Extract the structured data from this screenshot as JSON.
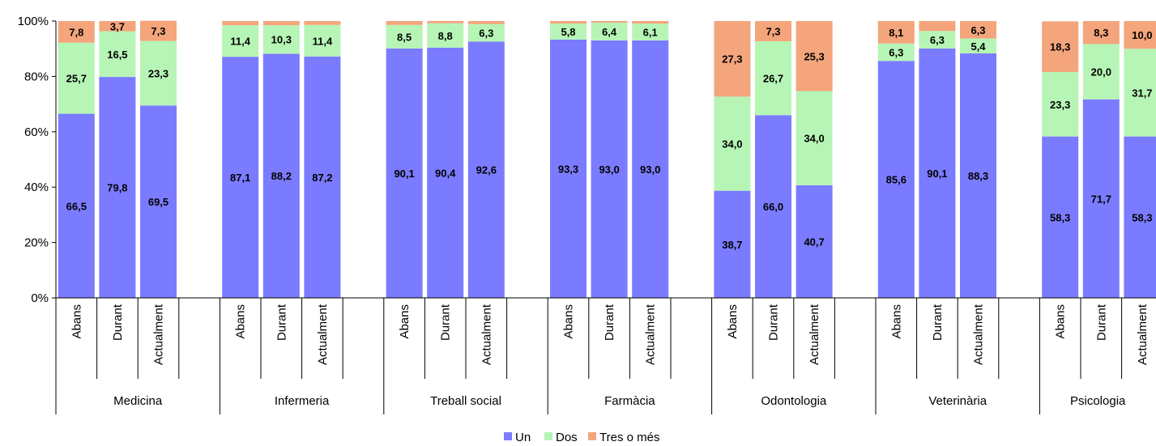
{
  "chart_data": {
    "type": "bar",
    "stacked": true,
    "percent": true,
    "title": "",
    "xlabel": "",
    "ylabel": "",
    "ylim": [
      0,
      100
    ],
    "y_ticks": [
      "0%",
      "20%",
      "40%",
      "60%",
      "80%",
      "100%"
    ],
    "grid": false,
    "legend_position": "bottom",
    "groups": [
      "Medicina",
      "Infermeria",
      "Treball social",
      "Farmàcia",
      "Odontologia",
      "Veterinària",
      "Psicologia"
    ],
    "periods": [
      "Abans",
      "Durant",
      "Actualment"
    ],
    "series": [
      {
        "name": "Un",
        "color": "#7b7bff",
        "values": [
          66.5,
          79.8,
          69.5,
          87.1,
          88.2,
          87.2,
          90.1,
          90.4,
          92.6,
          93.3,
          93.0,
          93.0,
          38.7,
          66.0,
          40.7,
          85.6,
          90.1,
          88.3,
          58.3,
          71.7,
          58.3
        ],
        "labels": [
          "66,5",
          "79,8",
          "69,5",
          "87,1",
          "88,2",
          "87,2",
          "90,1",
          "90,4",
          "92,6",
          "93,3",
          "93,0",
          "93,0",
          "38,7",
          "66,0",
          "40,7",
          "85,6",
          "90,1",
          "88,3",
          "58,3",
          "71,7",
          "58,3"
        ]
      },
      {
        "name": "Dos",
        "color": "#b6f5b6",
        "values": [
          25.7,
          16.5,
          23.3,
          11.4,
          10.3,
          11.4,
          8.5,
          8.8,
          6.3,
          5.8,
          6.4,
          6.1,
          34.0,
          26.7,
          34.0,
          6.3,
          6.3,
          5.4,
          23.3,
          20.0,
          31.7
        ],
        "labels": [
          "25,7",
          "16,5",
          "23,3",
          "11,4",
          "10,3",
          "11,4",
          "8,5",
          "8,8",
          "6,3",
          "5,8",
          "6,4",
          "6,1",
          "34,0",
          "26,7",
          "34,0",
          "6,3",
          "6,3",
          "5,4",
          "23,3",
          "20,0",
          "31,7"
        ]
      },
      {
        "name": "Tres o més",
        "color": "#f4a57c",
        "values": [
          7.8,
          3.7,
          7.3,
          1.5,
          1.5,
          1.4,
          1.4,
          0.8,
          1.1,
          0.9,
          0.6,
          0.9,
          27.3,
          7.3,
          25.3,
          8.1,
          3.6,
          6.3,
          18.3,
          8.3,
          10.0
        ],
        "labels": [
          "7,8",
          "3,7",
          "7,3",
          "",
          "",
          "",
          "",
          "",
          "",
          "",
          "",
          "",
          "27,3",
          "7,3",
          "25,3",
          "8,1",
          "",
          "6,3",
          "18,3",
          "8,3",
          "10,0"
        ]
      }
    ]
  }
}
